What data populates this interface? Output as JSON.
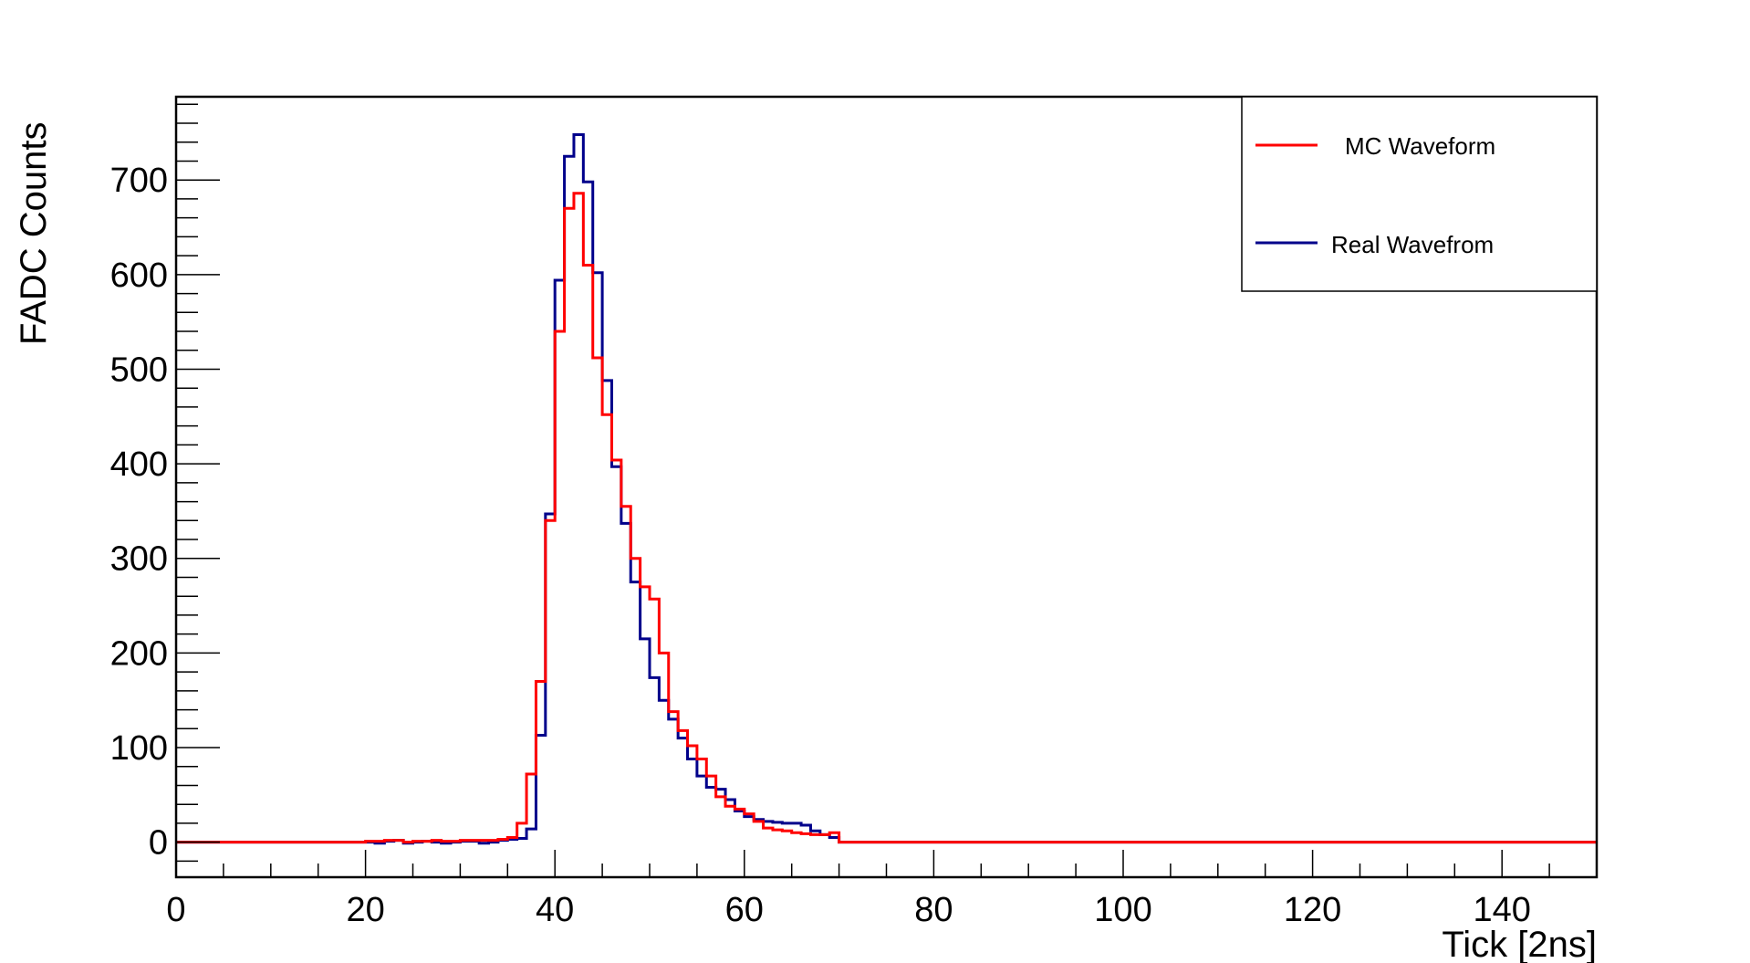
{
  "chart_data": {
    "type": "line",
    "step": true,
    "title": "",
    "xlabel": "Tick [2ns]",
    "ylabel": "FADC Counts",
    "xlim": [
      0,
      150
    ],
    "ylim": [
      -37,
      788
    ],
    "x_ticks": [
      0,
      20,
      40,
      60,
      80,
      100,
      120,
      140
    ],
    "y_ticks": [
      0,
      100,
      200,
      300,
      400,
      500,
      600,
      700
    ],
    "grid": false,
    "legend": {
      "position": "top-right"
    },
    "bin_width": 1,
    "x": [
      20,
      21,
      22,
      23,
      24,
      25,
      26,
      27,
      28,
      29,
      30,
      31,
      32,
      33,
      34,
      35,
      36,
      37,
      38,
      39,
      40,
      41,
      42,
      43,
      44,
      45,
      46,
      47,
      48,
      49,
      50,
      51,
      52,
      53,
      54,
      55,
      56,
      57,
      58,
      59,
      60,
      61,
      62,
      63,
      64,
      65,
      66,
      67,
      68,
      69
    ],
    "series": [
      {
        "name": "MC Waveform",
        "color": "#ff0000",
        "values": [
          1,
          1,
          2,
          2,
          0,
          1,
          1,
          2,
          1,
          1,
          2,
          2,
          2,
          2,
          3,
          5,
          20,
          72,
          170,
          340,
          540,
          670,
          686,
          610,
          512,
          452,
          404,
          355,
          300,
          270,
          257,
          200,
          138,
          118,
          102,
          88,
          70,
          48,
          38,
          35,
          30,
          22,
          15,
          13,
          12,
          10,
          9,
          8,
          8,
          10
        ]
      },
      {
        "name": "Real Wavefrom",
        "color": "#00008b",
        "values": [
          0,
          -1,
          1,
          2,
          -1,
          0,
          1,
          0,
          -1,
          0,
          1,
          1,
          -1,
          0,
          2,
          3,
          4,
          14,
          113,
          347,
          594,
          725,
          748,
          698,
          602,
          488,
          397,
          337,
          275,
          215,
          174,
          150,
          130,
          110,
          88,
          70,
          58,
          56,
          45,
          33,
          27,
          24,
          22,
          21,
          20,
          20,
          18,
          12,
          8,
          5
        ]
      }
    ]
  }
}
